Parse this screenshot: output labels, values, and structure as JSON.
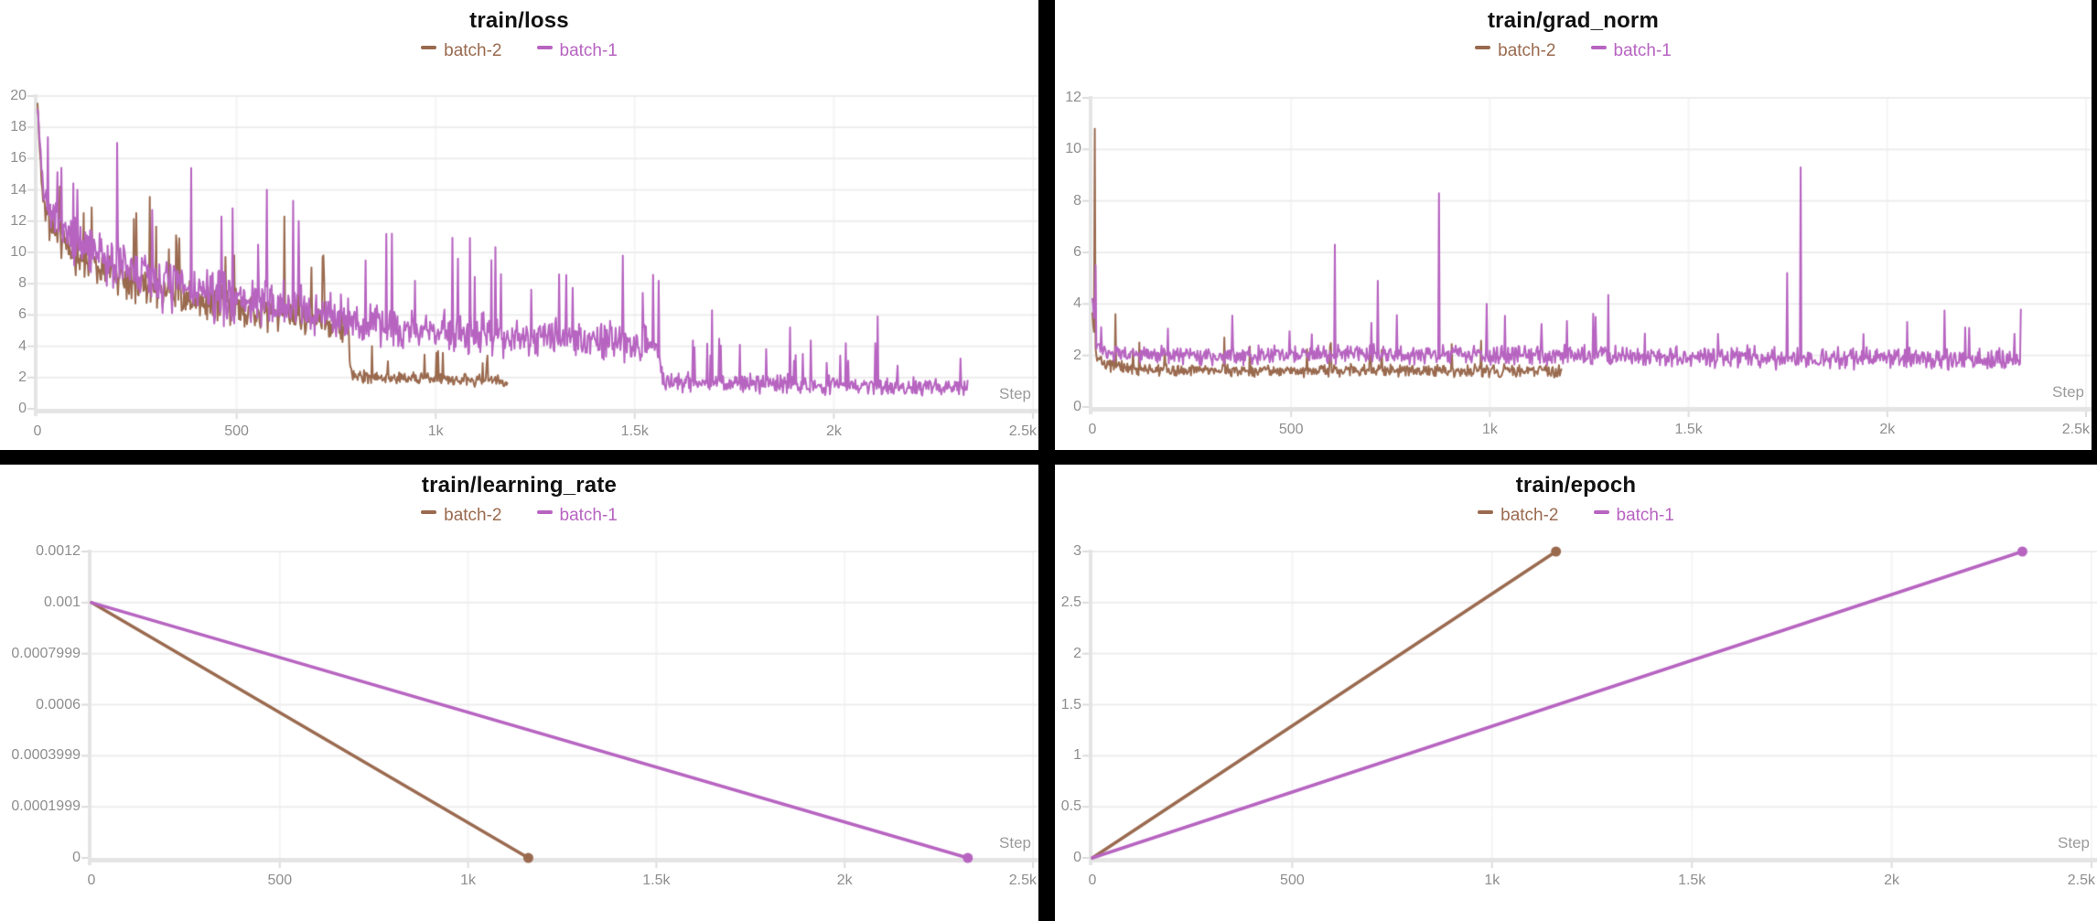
{
  "page": {
    "background": "#000000",
    "panel_background": "#ffffff",
    "title_color": "#111111",
    "tick_color": "#8e8e8e",
    "gridline_color": "#ededed",
    "axis_band_color": "#e4e4e4"
  },
  "chart_data": [
    {
      "id": "train-loss",
      "type": "line",
      "title": "train/loss",
      "xlabel": "Step",
      "x_range": [
        0,
        2500
      ],
      "y_range": [
        0,
        20
      ],
      "grid": true,
      "legend_position": "top",
      "x_ticks": [
        {
          "v": 0,
          "label": "0"
        },
        {
          "v": 500,
          "label": "500"
        },
        {
          "v": 1000,
          "label": "1k"
        },
        {
          "v": 1500,
          "label": "1.5k"
        },
        {
          "v": 2000,
          "label": "2k"
        },
        {
          "v": 2500,
          "label": "2.5k"
        }
      ],
      "y_ticks": [
        {
          "v": 0,
          "label": "0"
        },
        {
          "v": 2,
          "label": "2"
        },
        {
          "v": 4,
          "label": "4"
        },
        {
          "v": 6,
          "label": "6"
        },
        {
          "v": 8,
          "label": "8"
        },
        {
          "v": 10,
          "label": "10"
        },
        {
          "v": 12,
          "label": "12"
        },
        {
          "v": 14,
          "label": "14"
        },
        {
          "v": 16,
          "label": "16"
        },
        {
          "v": 18,
          "label": "18"
        },
        {
          "v": 20,
          "label": "20"
        }
      ],
      "series": [
        {
          "name": "batch-2",
          "color": "#9A6A4F",
          "kind": "noisy",
          "seed": 11,
          "step": 2,
          "x_end": 1180,
          "trend": [
            [
              0,
              19.5
            ],
            [
              6,
              16.5
            ],
            [
              14,
              13.5
            ],
            [
              25,
              12.2
            ],
            [
              50,
              11.0
            ],
            [
              100,
              9.7
            ],
            [
              150,
              9.1
            ],
            [
              200,
              8.5
            ],
            [
              300,
              7.7
            ],
            [
              400,
              7.0
            ],
            [
              500,
              6.5
            ],
            [
              600,
              6.1
            ],
            [
              700,
              5.6
            ],
            [
              778,
              5.2
            ],
            [
              790,
              2.1
            ],
            [
              900,
              1.95
            ],
            [
              1050,
              1.85
            ],
            [
              1180,
              1.75
            ]
          ],
          "noise": [
            [
              0,
              0.4
            ],
            [
              25,
              1.3
            ],
            [
              100,
              1.5
            ],
            [
              600,
              1.4
            ],
            [
              778,
              1.2
            ],
            [
              790,
              0.45
            ],
            [
              1180,
              0.45
            ]
          ],
          "spikes": [
            [
              92,
              12.2
            ],
            [
              330,
              10.2
            ],
            [
              620,
              12.3
            ],
            [
              840,
              4.0
            ],
            [
              1006,
              3.7
            ]
          ],
          "spike_prob": 0.03
        },
        {
          "name": "batch-1",
          "color": "#B764C1",
          "kind": "noisy",
          "seed": 7,
          "step": 2,
          "x_end": 2336,
          "trend": [
            [
              0,
              19.5
            ],
            [
              6,
              17.0
            ],
            [
              14,
              14.2
            ],
            [
              25,
              12.8
            ],
            [
              50,
              11.6
            ],
            [
              100,
              10.5
            ],
            [
              150,
              9.8
            ],
            [
              200,
              9.2
            ],
            [
              300,
              8.3
            ],
            [
              400,
              7.5
            ],
            [
              500,
              7.0
            ],
            [
              600,
              6.6
            ],
            [
              700,
              6.2
            ],
            [
              778,
              6.0
            ],
            [
              800,
              5.4
            ],
            [
              1000,
              5.0
            ],
            [
              1200,
              4.7
            ],
            [
              1400,
              4.4
            ],
            [
              1556,
              4.15
            ],
            [
              1572,
              1.75
            ],
            [
              1800,
              1.6
            ],
            [
              2000,
              1.5
            ],
            [
              2336,
              1.4
            ]
          ],
          "noise": [
            [
              0,
              0.4
            ],
            [
              25,
              1.5
            ],
            [
              100,
              1.9
            ],
            [
              300,
              2.1
            ],
            [
              800,
              1.7
            ],
            [
              1400,
              1.5
            ],
            [
              1556,
              1.3
            ],
            [
              1572,
              0.75
            ],
            [
              2336,
              0.7
            ]
          ],
          "spikes": [
            [
              100,
              14.0
            ],
            [
              462,
              12.3
            ],
            [
              576,
              14.0
            ],
            [
              642,
              13.3
            ],
            [
              890,
              11.2
            ],
            [
              1056,
              9.6
            ],
            [
              1310,
              8.6
            ],
            [
              1693,
              6.3
            ],
            [
              1890,
              5.2
            ],
            [
              2110,
              5.9
            ]
          ],
          "spike_prob": 0.035
        }
      ]
    },
    {
      "id": "train-grad-norm",
      "type": "line",
      "title": "train/grad_norm",
      "xlabel": "Step",
      "x_range": [
        0,
        2500
      ],
      "y_range": [
        0,
        12
      ],
      "grid": true,
      "legend_position": "top",
      "x_ticks": [
        {
          "v": 0,
          "label": "0"
        },
        {
          "v": 500,
          "label": "500"
        },
        {
          "v": 1000,
          "label": "1k"
        },
        {
          "v": 1500,
          "label": "1.5k"
        },
        {
          "v": 2000,
          "label": "2k"
        },
        {
          "v": 2500,
          "label": "2.5k"
        }
      ],
      "y_ticks": [
        {
          "v": 0,
          "label": "0"
        },
        {
          "v": 2,
          "label": "2"
        },
        {
          "v": 4,
          "label": "4"
        },
        {
          "v": 6,
          "label": "6"
        },
        {
          "v": 8,
          "label": "8"
        },
        {
          "v": 10,
          "label": "10"
        },
        {
          "v": 12,
          "label": "12"
        }
      ],
      "series": [
        {
          "name": "batch-2",
          "color": "#9A6A4F",
          "kind": "noisy",
          "seed": 33,
          "step": 2,
          "x_end": 1180,
          "trend": [
            [
              0,
              3.6
            ],
            [
              10,
              1.95
            ],
            [
              30,
              1.65
            ],
            [
              80,
              1.5
            ],
            [
              200,
              1.42
            ],
            [
              500,
              1.4
            ],
            [
              800,
              1.42
            ],
            [
              1180,
              1.38
            ]
          ],
          "noise": [
            [
              0,
              0.15
            ],
            [
              30,
              0.28
            ],
            [
              1180,
              0.3
            ]
          ],
          "spikes": [
            [
              6,
              10.8
            ],
            [
              57,
              3.6
            ],
            [
              332,
              2.7
            ],
            [
              700,
              2.4
            ]
          ],
          "spike_prob": 0.012
        },
        {
          "name": "batch-1",
          "color": "#B764C1",
          "kind": "noisy",
          "seed": 44,
          "step": 2,
          "x_end": 2336,
          "trend": [
            [
              0,
              4.2
            ],
            [
              10,
              2.4
            ],
            [
              40,
              2.1
            ],
            [
              200,
              2.0
            ],
            [
              900,
              2.05
            ],
            [
              1560,
              1.95
            ],
            [
              2336,
              1.8
            ]
          ],
          "noise": [
            [
              0,
              0.2
            ],
            [
              40,
              0.4
            ],
            [
              1500,
              0.48
            ],
            [
              2336,
              0.5
            ]
          ],
          "spikes": [
            [
              8,
              5.5
            ],
            [
              610,
              6.3
            ],
            [
              718,
              4.9
            ],
            [
              872,
              8.3
            ],
            [
              992,
              4.0
            ],
            [
              1265,
              3.5
            ],
            [
              1297,
              4.35
            ],
            [
              1748,
              5.2
            ],
            [
              1781,
              9.3
            ],
            [
              2050,
              3.3
            ]
          ],
          "spike_prob": 0.02
        }
      ]
    },
    {
      "id": "train-learning-rate",
      "type": "line",
      "title": "train/learning_rate",
      "xlabel": "Step",
      "x_range": [
        0,
        2500
      ],
      "y_range": [
        0,
        0.0012
      ],
      "grid": true,
      "legend_position": "top",
      "x_ticks": [
        {
          "v": 0,
          "label": "0"
        },
        {
          "v": 500,
          "label": "500"
        },
        {
          "v": 1000,
          "label": "1k"
        },
        {
          "v": 1500,
          "label": "1.5k"
        },
        {
          "v": 2000,
          "label": "2k"
        },
        {
          "v": 2500,
          "label": "2.5k"
        }
      ],
      "y_ticks": [
        {
          "v": 0,
          "label": "0"
        },
        {
          "v": 0.0001999,
          "label": "0.0001999"
        },
        {
          "v": 0.0003999,
          "label": "0.0003999"
        },
        {
          "v": 0.0006,
          "label": "0.0006"
        },
        {
          "v": 0.0007999,
          "label": "0.0007999"
        },
        {
          "v": 0.001,
          "label": "0.001"
        },
        {
          "v": 0.0012,
          "label": "0.0012"
        }
      ],
      "series": [
        {
          "name": "batch-2",
          "color": "#9A6A4F",
          "kind": "line",
          "end_dot": true,
          "points": [
            [
              0,
              0.001
            ],
            [
              1160,
              0
            ]
          ]
        },
        {
          "name": "batch-1",
          "color": "#B764C1",
          "kind": "line",
          "end_dot": true,
          "points": [
            [
              0,
              0.001
            ],
            [
              2327,
              0
            ]
          ]
        }
      ]
    },
    {
      "id": "train-epoch",
      "type": "line",
      "title": "train/epoch",
      "xlabel": "Step",
      "x_range": [
        0,
        2500
      ],
      "y_range": [
        0,
        3
      ],
      "grid": true,
      "legend_position": "top",
      "x_ticks": [
        {
          "v": 0,
          "label": "0"
        },
        {
          "v": 500,
          "label": "500"
        },
        {
          "v": 1000,
          "label": "1k"
        },
        {
          "v": 1500,
          "label": "1.5k"
        },
        {
          "v": 2000,
          "label": "2k"
        },
        {
          "v": 2500,
          "label": "2.5k"
        }
      ],
      "y_ticks": [
        {
          "v": 0,
          "label": "0"
        },
        {
          "v": 0.5,
          "label": "0.5"
        },
        {
          "v": 1,
          "label": "1"
        },
        {
          "v": 1.5,
          "label": "1.5"
        },
        {
          "v": 2,
          "label": "2"
        },
        {
          "v": 2.5,
          "label": "2.5"
        },
        {
          "v": 3,
          "label": "3"
        }
      ],
      "series": [
        {
          "name": "batch-2",
          "color": "#9A6A4F",
          "kind": "line",
          "end_dot": true,
          "points": [
            [
              0,
              0
            ],
            [
              1160,
              3
            ]
          ]
        },
        {
          "name": "batch-1",
          "color": "#B764C1",
          "kind": "line",
          "end_dot": true,
          "points": [
            [
              0,
              0
            ],
            [
              2327,
              3
            ]
          ]
        }
      ]
    }
  ]
}
